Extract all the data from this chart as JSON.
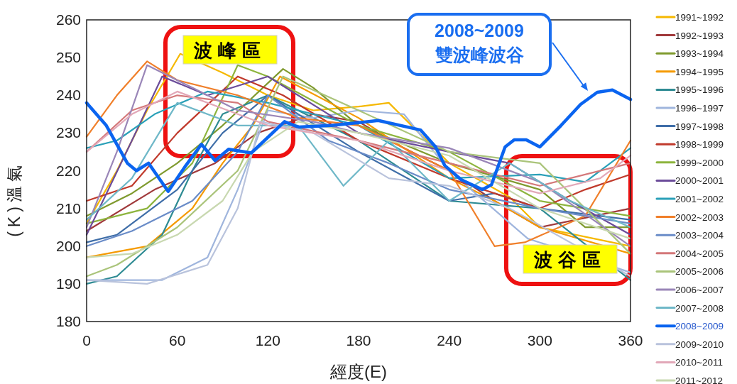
{
  "chart_data": {
    "type": "line",
    "xlabel": "經度(E)",
    "ylabel": "(K)溫氣",
    "xlim": [
      0,
      360
    ],
    "xticks": [
      0,
      60,
      120,
      180,
      240,
      300,
      360
    ],
    "ylim": [
      180,
      260
    ],
    "yticks": [
      180,
      190,
      200,
      210,
      220,
      230,
      240,
      250,
      260
    ],
    "grid": false,
    "legend": "right",
    "line_style": "solid",
    "annotations": [
      "波峰區",
      "波谷區",
      "2008~2009\n雙波峰波谷"
    ],
    "series": [
      {
        "name": "1991~1992",
        "color": "#f5b800",
        "x": [
          0,
          20,
          40,
          62,
          90,
          120,
          150,
          180,
          200,
          240,
          280,
          300,
          360
        ],
        "values": [
          206,
          220,
          236,
          251,
          246,
          240,
          236,
          237,
          238,
          222,
          213,
          205,
          200
        ]
      },
      {
        "name": "1992~1993",
        "color": "#a0393b",
        "x": [
          0,
          45,
          85,
          113,
          150,
          180,
          210,
          240,
          270,
          300,
          360
        ],
        "values": [
          204,
          215,
          222,
          230,
          235,
          233,
          226,
          220,
          212,
          205,
          210
        ]
      },
      {
        "name": "1993~1994",
        "color": "#7f9a2e",
        "x": [
          0,
          30,
          60,
          90,
          130,
          150,
          180,
          240,
          300,
          330,
          360
        ],
        "values": [
          208,
          214,
          222,
          232,
          247,
          242,
          232,
          222,
          215,
          205,
          205
        ]
      },
      {
        "name": "1994~1995",
        "color": "#f59a00",
        "x": [
          0,
          40,
          70,
          90,
          110,
          128,
          180,
          240,
          270,
          300,
          360
        ],
        "values": [
          197,
          200,
          210,
          222,
          232,
          245,
          234,
          218,
          212,
          205,
          198
        ]
      },
      {
        "name": "1995~1996",
        "color": "#2e8b93",
        "x": [
          0,
          20,
          50,
          70,
          90,
          120,
          180,
          240,
          300,
          360
        ],
        "values": [
          190,
          192,
          203,
          220,
          235,
          240,
          228,
          212,
          210,
          191
        ]
      },
      {
        "name": "1996~1997",
        "color": "#9fb5dd",
        "x": [
          0,
          50,
          80,
          100,
          120,
          150,
          180,
          210,
          240,
          292,
          360
        ],
        "values": [
          191,
          191,
          197,
          215,
          236,
          234,
          236,
          235,
          220,
          202,
          193
        ]
      },
      {
        "name": "1997~1998",
        "color": "#3f6ea8",
        "x": [
          0,
          20,
          60,
          90,
          120,
          180,
          240,
          270,
          300,
          360
        ],
        "values": [
          201,
          203,
          215,
          230,
          240,
          225,
          212,
          214,
          210,
          207
        ]
      },
      {
        "name": "1998~1999",
        "color": "#c0392b",
        "x": [
          0,
          30,
          60,
          100,
          130,
          180,
          240,
          300,
          330,
          360
        ],
        "values": [
          212,
          216,
          230,
          245,
          240,
          228,
          218,
          210,
          215,
          219
        ]
      },
      {
        "name": "1999~2000",
        "color": "#8db43d",
        "x": [
          0,
          40,
          70,
          100,
          120,
          180,
          240,
          300,
          360
        ],
        "values": [
          206,
          210,
          222,
          248,
          245,
          232,
          225,
          212,
          208
        ]
      },
      {
        "name": "2000~2001",
        "color": "#6b4c9a",
        "x": [
          0,
          30,
          50,
          80,
          120,
          180,
          240,
          280,
          320,
          360
        ],
        "values": [
          203,
          228,
          245,
          240,
          245,
          230,
          225,
          222,
          212,
          203
        ]
      },
      {
        "name": "2001~2002",
        "color": "#2aa0b8",
        "x": [
          0,
          20,
          45,
          80,
          120,
          180,
          240,
          300,
          330,
          360
        ],
        "values": [
          226,
          228,
          235,
          241,
          238,
          232,
          218,
          219,
          217,
          226
        ]
      },
      {
        "name": "2002~2003",
        "color": "#f07f2a",
        "x": [
          0,
          20,
          40,
          60,
          100,
          140,
          180,
          240,
          270,
          290,
          330,
          360
        ],
        "values": [
          229,
          240,
          249,
          244,
          240,
          234,
          232,
          220,
          200,
          201,
          208,
          228
        ]
      },
      {
        "name": "2003~2004",
        "color": "#6a8cc8",
        "x": [
          0,
          30,
          70,
          100,
          120,
          160,
          200,
          240,
          300,
          360
        ],
        "values": [
          200,
          204,
          212,
          225,
          240,
          228,
          222,
          215,
          210,
          206
        ]
      },
      {
        "name": "2004~2005",
        "color": "#d4787a",
        "x": [
          0,
          30,
          60,
          100,
          120,
          180,
          240,
          300,
          360
        ],
        "values": [
          225,
          236,
          240,
          238,
          233,
          228,
          222,
          216,
          222
        ]
      },
      {
        "name": "2005~2006",
        "color": "#aac47a",
        "x": [
          0,
          20,
          60,
          100,
          130,
          180,
          240,
          300,
          360
        ],
        "values": [
          192,
          195,
          205,
          220,
          245,
          236,
          225,
          222,
          198
        ]
      },
      {
        "name": "2006~2007",
        "color": "#9a86b8",
        "x": [
          0,
          20,
          40,
          70,
          100,
          150,
          180,
          240,
          300,
          360
        ],
        "values": [
          205,
          225,
          248,
          242,
          236,
          233,
          230,
          226,
          217,
          200
        ]
      },
      {
        "name": "2007~2008",
        "color": "#6fb8c8",
        "x": [
          0,
          30,
          60,
          100,
          140,
          170,
          200,
          240,
          280,
          320,
          360
        ],
        "values": [
          207,
          218,
          238,
          232,
          232,
          216,
          228,
          212,
          222,
          212,
          205
        ]
      },
      {
        "name": "2008~2009",
        "color": "#0a64f0",
        "x": [
          0,
          13,
          27,
          33,
          41,
          54,
          65,
          76,
          85,
          94,
          109,
          131,
          140,
          162,
          193,
          221,
          231,
          237,
          248,
          262,
          268,
          277,
          283,
          291,
          300,
          314,
          327,
          338,
          348,
          360
        ],
        "values": [
          238,
          232,
          222,
          220,
          222,
          214.5,
          221,
          227,
          222.7,
          225.7,
          224.7,
          233,
          231.6,
          232,
          233.3,
          230.8,
          226.3,
          221.4,
          217.6,
          215,
          216.3,
          226.3,
          228.2,
          228.2,
          226.3,
          232,
          237.6,
          240.8,
          241.4,
          238.9
        ]
      },
      {
        "name": "2009~2010",
        "color": "#b9c3dc",
        "x": [
          0,
          40,
          80,
          100,
          115,
          150,
          200,
          240,
          280,
          360
        ],
        "values": [
          191,
          190,
          195,
          210,
          233,
          230,
          218,
          216,
          210,
          192
        ]
      },
      {
        "name": "2010~2011",
        "color": "#e2a8b8",
        "x": [
          0,
          30,
          60,
          100,
          120,
          180,
          240,
          300,
          340,
          360
        ],
        "values": [
          225,
          235,
          241,
          235,
          232,
          228,
          220,
          214,
          218,
          224
        ]
      },
      {
        "name": "2011~2012",
        "color": "#c8d8b0",
        "x": [
          0,
          30,
          60,
          90,
          110,
          140,
          180,
          240,
          300,
          360
        ],
        "values": [
          197,
          198,
          203,
          212,
          225,
          233,
          230,
          224,
          210,
          202
        ]
      }
    ]
  }
}
